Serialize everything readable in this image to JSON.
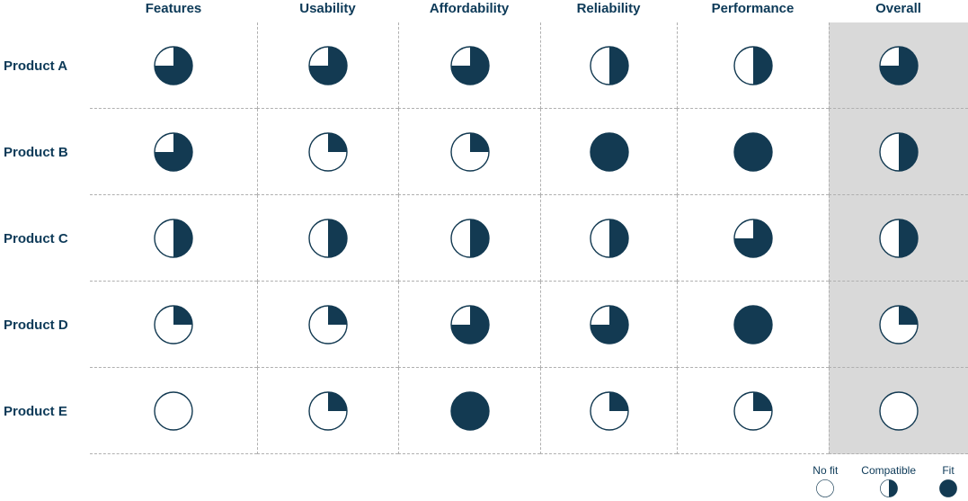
{
  "colors": {
    "ball_navy": "#133a52",
    "text_navy": "#0d3a58",
    "highlight_column_bg": "#d9d9d9",
    "grid_line": "#b0b0b0",
    "background": "#ffffff"
  },
  "matrix": {
    "columns": [
      "Features",
      "Usability",
      "Affordability",
      "Reliability",
      "Performance",
      "Overall"
    ],
    "highlighted_column": "Overall",
    "rows": [
      {
        "label": "Product A",
        "values": [
          75,
          75,
          75,
          50,
          50,
          75
        ]
      },
      {
        "label": "Product B",
        "values": [
          75,
          25,
          25,
          100,
          100,
          50
        ]
      },
      {
        "label": "Product C",
        "values": [
          50,
          50,
          50,
          50,
          75,
          50
        ]
      },
      {
        "label": "Product D",
        "values": [
          25,
          25,
          75,
          75,
          100,
          25
        ]
      },
      {
        "label": "Product E",
        "values": [
          0,
          25,
          100,
          25,
          25,
          0
        ]
      }
    ]
  },
  "legend": [
    {
      "label": "No fit",
      "fill_pct": 0
    },
    {
      "label": "Compatible",
      "fill_pct": 50
    },
    {
      "label": "Fit",
      "fill_pct": 100
    }
  ],
  "chart_data": {
    "type": "table",
    "title": "",
    "subtitle": "",
    "columns": [
      "Features",
      "Usability",
      "Affordability",
      "Reliability",
      "Performance",
      "Overall"
    ],
    "rows": [
      "Product A",
      "Product B",
      "Product C",
      "Product D",
      "Product E"
    ],
    "values_fill_pct": [
      [
        75,
        75,
        75,
        50,
        50,
        75
      ],
      [
        75,
        25,
        25,
        100,
        100,
        50
      ],
      [
        50,
        50,
        50,
        50,
        75,
        50
      ],
      [
        25,
        25,
        75,
        75,
        100,
        25
      ],
      [
        0,
        25,
        100,
        25,
        25,
        0
      ]
    ],
    "glyph": "harvey-ball",
    "fill_start": "12-o-clock-clockwise",
    "highlighted_column": "Overall",
    "legend": [
      {
        "label": "No fit",
        "fill_pct": 0
      },
      {
        "label": "Compatible",
        "fill_pct": 50
      },
      {
        "label": "Fit",
        "fill_pct": 100
      }
    ],
    "legend_position": "bottom-right",
    "grid": "dashed-separators"
  }
}
